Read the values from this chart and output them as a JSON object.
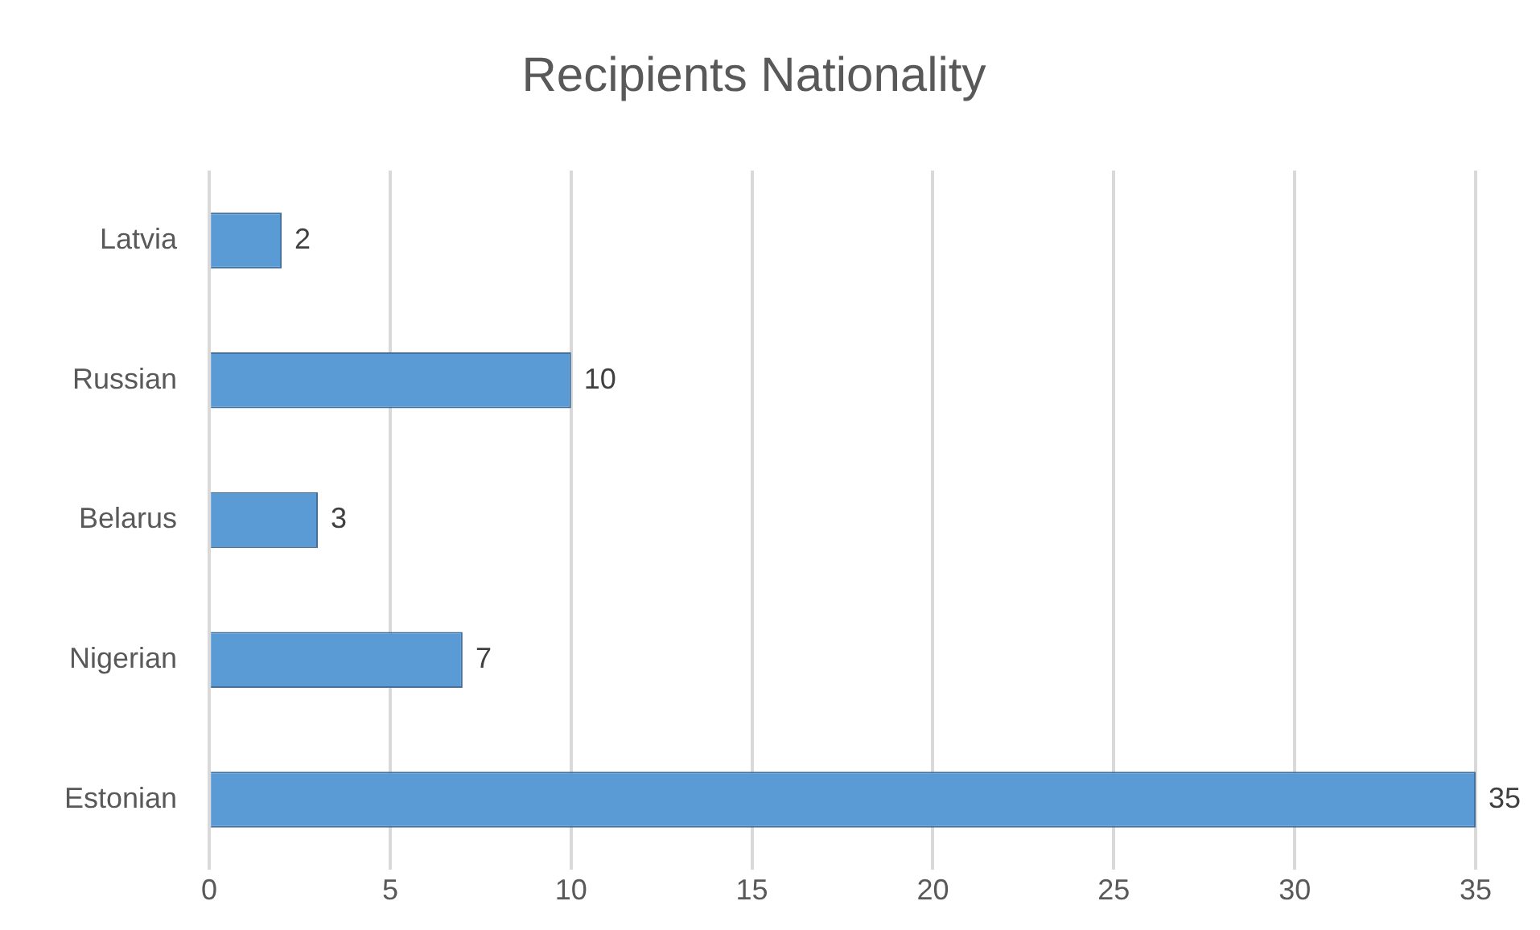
{
  "chart_data": {
    "type": "bar",
    "title": "Recipients Nationality",
    "orientation": "horizontal",
    "categories": [
      "Latvia",
      "Russian",
      "Belarus",
      "Nigerian",
      "Estonian"
    ],
    "values": [
      2,
      10,
      3,
      7,
      35
    ],
    "color": "#5b9bd5",
    "xlim": [
      0,
      35
    ],
    "xticks": [
      0,
      5,
      10,
      15,
      20,
      25,
      30,
      35
    ],
    "grid": "x",
    "data_labels": true
  }
}
